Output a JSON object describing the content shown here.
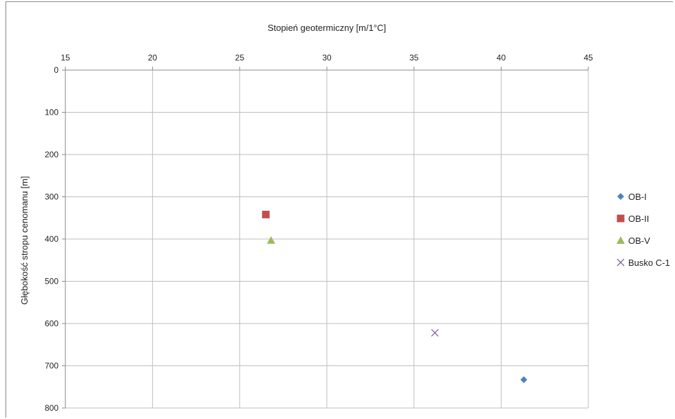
{
  "chart_data": {
    "type": "scatter",
    "title": "Stopień geotermiczny [m/1°C]",
    "xlabel": "Stopień geotermiczny [m/1°C]",
    "ylabel": "Głębokość stropu cenomanu [m]",
    "xlim": [
      15,
      45
    ],
    "ylim": [
      0,
      800
    ],
    "y_inverted": true,
    "x_axis_position": "top",
    "x_ticks": [
      "15",
      "20",
      "25",
      "30",
      "35",
      "40",
      "45"
    ],
    "y_ticks": [
      "0",
      "100",
      "200",
      "300",
      "400",
      "500",
      "600",
      "700",
      "800"
    ],
    "grid": true,
    "legend_position": "right",
    "series": [
      {
        "name": "OB-I",
        "marker": "diamond",
        "color": "#4F81BD",
        "points": [
          {
            "x": 41.3,
            "y": 733
          }
        ]
      },
      {
        "name": "OB-II",
        "marker": "square",
        "color": "#C0504D",
        "points": [
          {
            "x": 26.5,
            "y": 342
          }
        ]
      },
      {
        "name": "OB-V",
        "marker": "triangle",
        "color": "#9BBB59",
        "points": [
          {
            "x": 26.8,
            "y": 403
          }
        ]
      },
      {
        "name": "Busko C-1",
        "marker": "x",
        "color": "#8064A2",
        "points": [
          {
            "x": 36.2,
            "y": 622
          }
        ]
      }
    ]
  }
}
